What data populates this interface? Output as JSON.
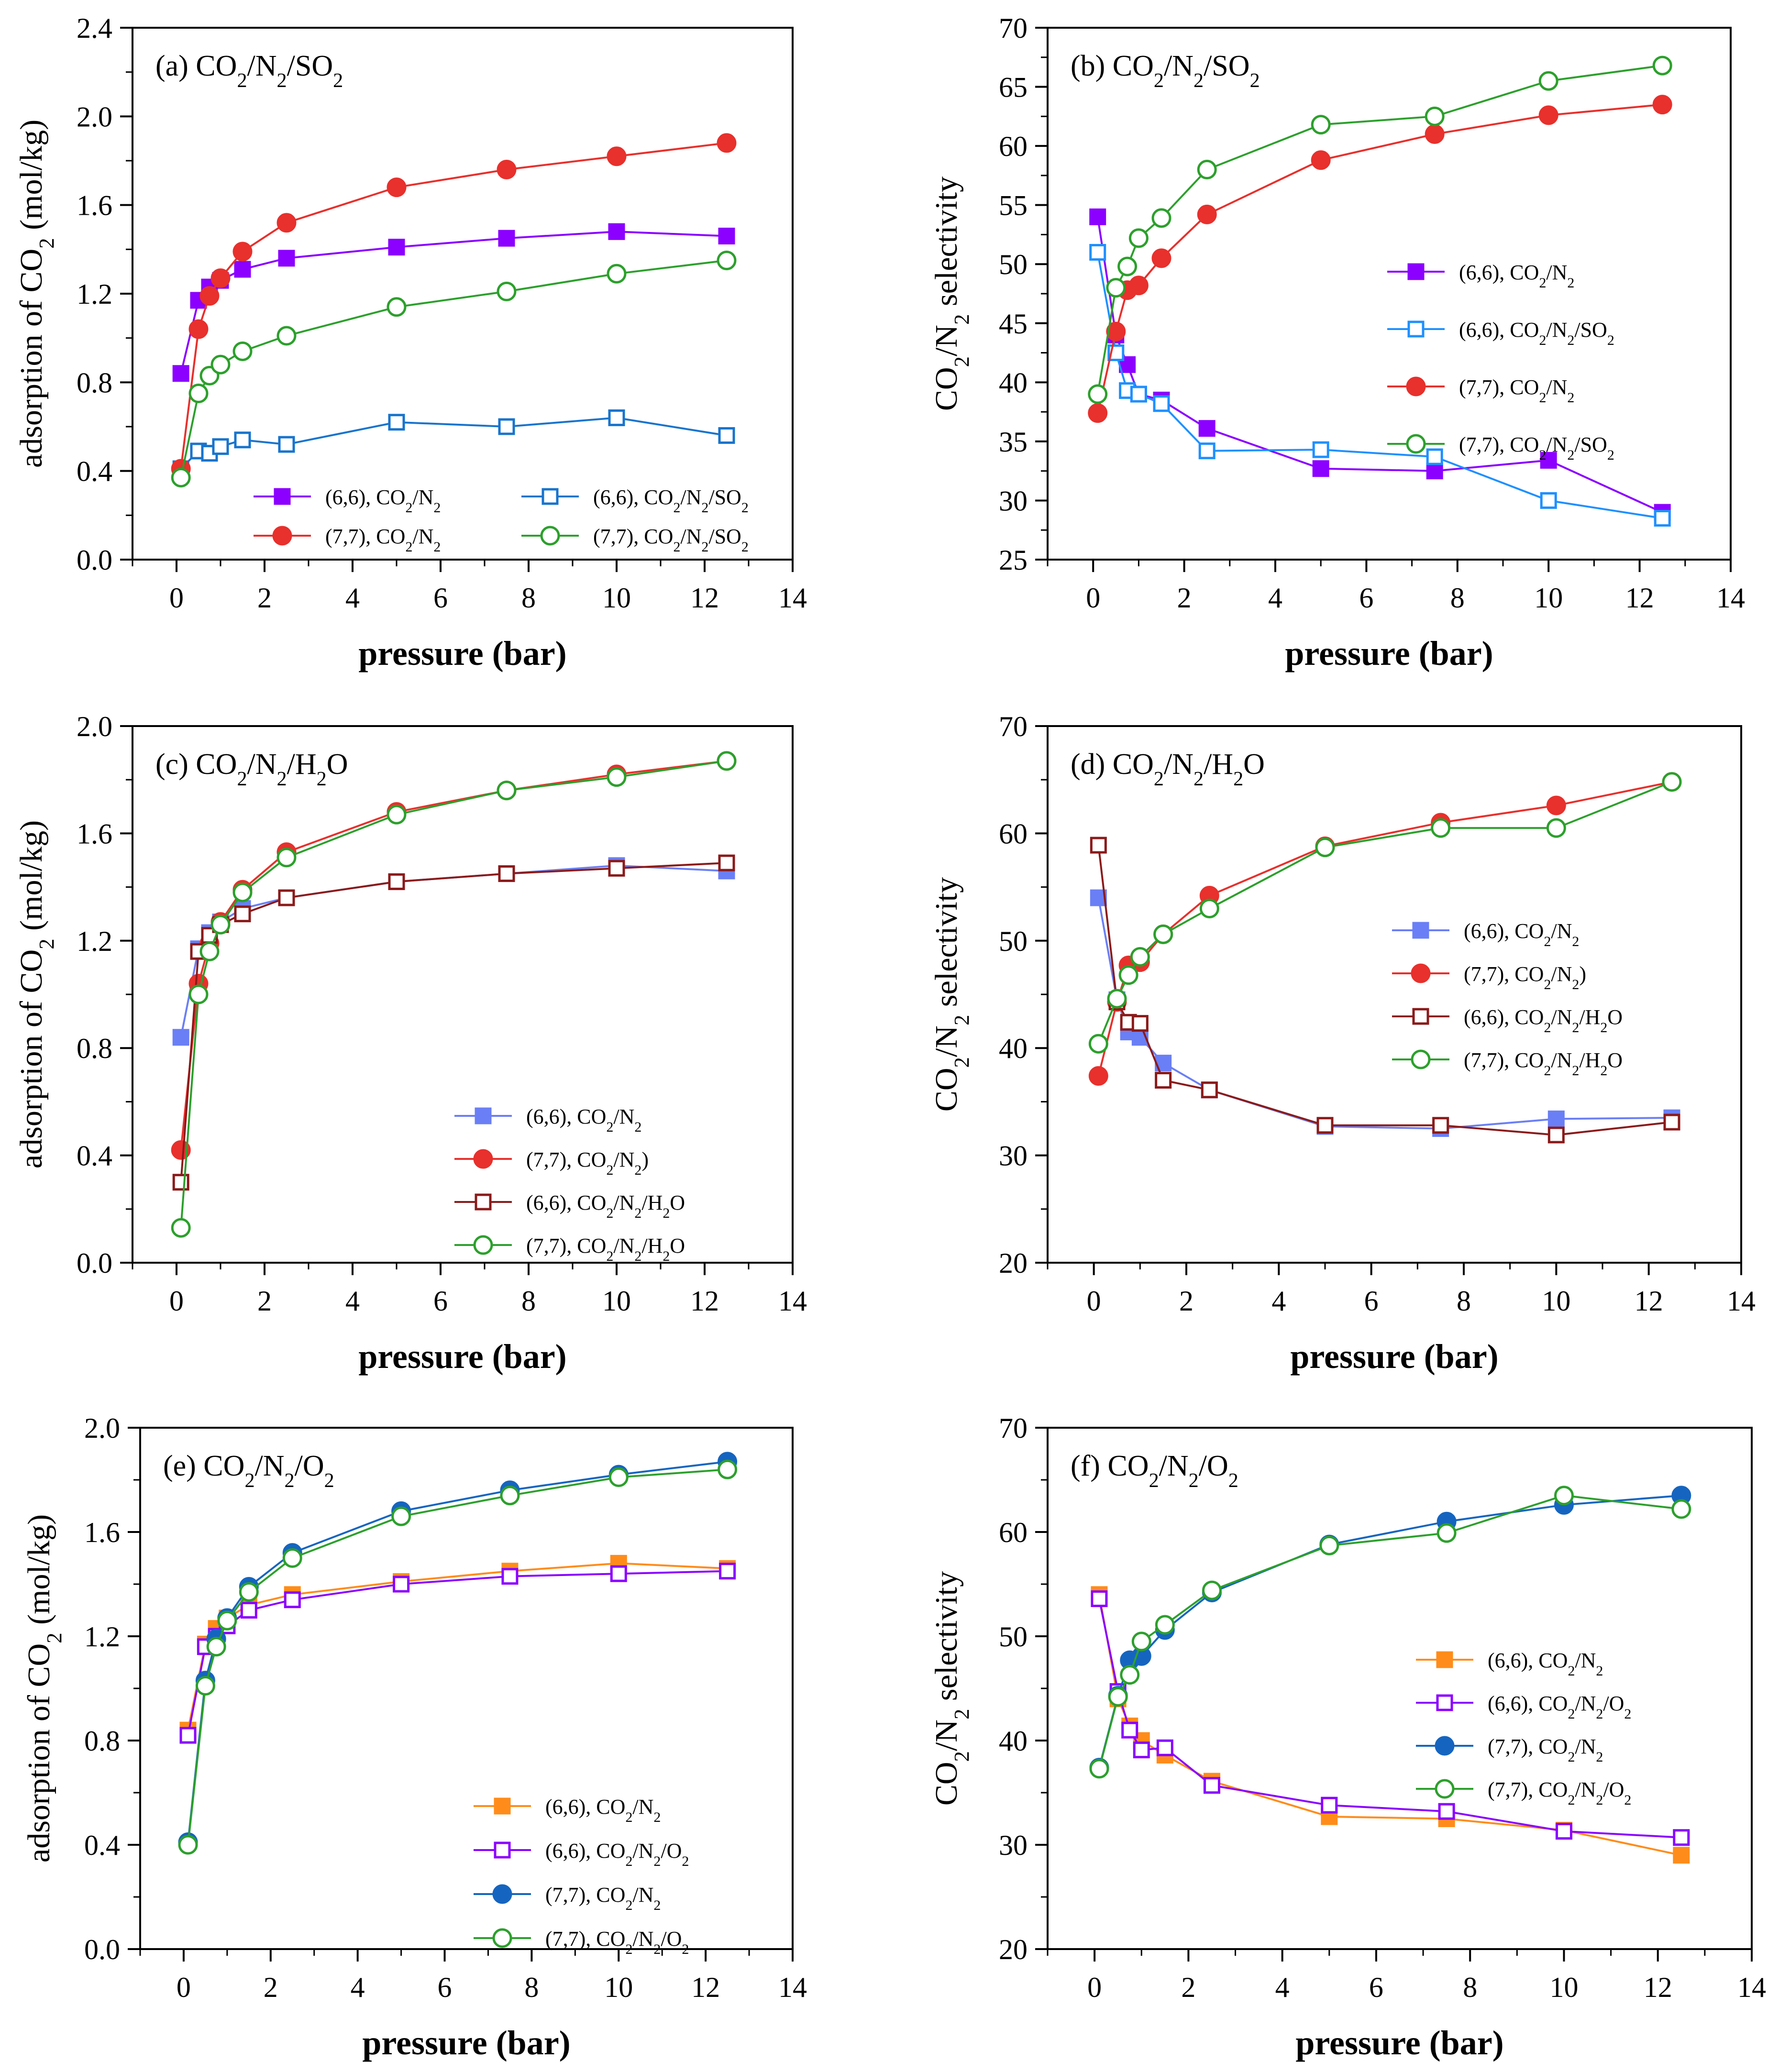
{
  "chart_data": [
    {
      "type": "line",
      "panel_label": "(a)",
      "title": "CO2/N2/SO2",
      "xlabel": "pressure (bar)",
      "ylabel": "adsorption of CO2 (mol/kg)",
      "xlim": [
        -1,
        14
      ],
      "ylim": [
        0.0,
        2.4
      ],
      "xticks": [
        0,
        2,
        4,
        6,
        8,
        10,
        12,
        14
      ],
      "yticks": [
        0.0,
        0.4,
        0.8,
        1.2,
        1.6,
        2.0,
        2.4
      ],
      "ytick_labels": [
        "0.0",
        "0.4",
        "0.8",
        "1.2",
        "1.6",
        "2.0",
        "2.4"
      ],
      "legend_layout": "two-column",
      "legend_position": "bottom-right",
      "series": [
        {
          "name": "(6,6), CO2/N2",
          "color": "#8B00FF",
          "marker": "square",
          "filled": true,
          "x": [
            0.1,
            0.5,
            0.75,
            1.0,
            1.5,
            2.5,
            5,
            7.5,
            10,
            12.5
          ],
          "y": [
            0.84,
            1.17,
            1.23,
            1.26,
            1.31,
            1.36,
            1.41,
            1.45,
            1.48,
            1.46
          ]
        },
        {
          "name": "(6,6), CO2/N2/SO2",
          "color": "#1874CD",
          "marker": "square",
          "filled": false,
          "x": [
            0.1,
            0.5,
            0.75,
            1.0,
            1.5,
            2.5,
            5,
            7.5,
            10,
            12.5
          ],
          "y": [
            0.41,
            0.49,
            0.48,
            0.51,
            0.54,
            0.52,
            0.62,
            0.6,
            0.64,
            0.56
          ]
        },
        {
          "name": "(7,7), CO2/N2",
          "color": "#E8302C",
          "marker": "circle",
          "filled": true,
          "x": [
            0.1,
            0.5,
            0.75,
            1.0,
            1.5,
            2.5,
            5,
            7.5,
            10,
            12.5
          ],
          "y": [
            0.41,
            1.04,
            1.19,
            1.27,
            1.39,
            1.52,
            1.68,
            1.76,
            1.82,
            1.88
          ]
        },
        {
          "name": "(7,7), CO2/N2/SO2",
          "color": "#2CA02C",
          "marker": "circle",
          "filled": false,
          "x": [
            0.1,
            0.5,
            0.75,
            1.0,
            1.5,
            2.5,
            5,
            7.5,
            10,
            12.5
          ],
          "y": [
            0.37,
            0.75,
            0.83,
            0.88,
            0.94,
            1.01,
            1.14,
            1.21,
            1.29,
            1.35
          ]
        }
      ]
    },
    {
      "type": "line",
      "panel_label": "(b)",
      "title": "CO2/N2/SO2",
      "xlabel": "pressure (bar)",
      "ylabel": "CO2/N2 selectivity",
      "xlim": [
        -1,
        14
      ],
      "ylim": [
        25,
        70
      ],
      "xticks": [
        0,
        2,
        4,
        6,
        8,
        10,
        12,
        14
      ],
      "yticks": [
        25,
        30,
        35,
        40,
        45,
        50,
        55,
        60,
        65,
        70
      ],
      "ytick_labels": [
        "25",
        "30",
        "35",
        "40",
        "45",
        "50",
        "55",
        "60",
        "65",
        "70"
      ],
      "legend_layout": "one-column",
      "legend_position": "center-right",
      "series": [
        {
          "name": "(6,6), CO2/N2",
          "color": "#8B00FF",
          "marker": "square",
          "filled": true,
          "x": [
            0.1,
            0.5,
            0.75,
            1.0,
            1.5,
            2.5,
            5,
            7.5,
            10,
            12.5
          ],
          "y": [
            54.0,
            44.0,
            41.5,
            39.0,
            38.5,
            36.1,
            32.7,
            32.5,
            33.4,
            29.0
          ]
        },
        {
          "name": "(6,6), CO2/N2/SO2",
          "color": "#1E90FF",
          "marker": "square",
          "filled": false,
          "x": [
            0.1,
            0.5,
            0.75,
            1.0,
            1.5,
            2.5,
            5,
            7.5,
            10,
            12.5
          ],
          "y": [
            51.0,
            42.5,
            39.3,
            39.0,
            38.2,
            34.2,
            34.3,
            33.7,
            30.0,
            28.5
          ]
        },
        {
          "name": "(7,7), CO2/N2",
          "color": "#E8302C",
          "marker": "circle",
          "filled": true,
          "x": [
            0.1,
            0.5,
            0.75,
            1.0,
            1.5,
            2.5,
            5,
            7.5,
            10,
            12.5
          ],
          "y": [
            37.4,
            44.3,
            47.8,
            48.2,
            50.5,
            54.2,
            58.8,
            61.0,
            62.6,
            63.5
          ]
        },
        {
          "name": "(7,7), CO2/N2/SO2",
          "color": "#2CA02C",
          "marker": "circle",
          "filled": false,
          "x": [
            0.1,
            0.5,
            0.75,
            1.0,
            1.5,
            2.5,
            5,
            7.5,
            10,
            12.5
          ],
          "y": [
            39.0,
            48.0,
            49.8,
            52.2,
            53.9,
            58.0,
            61.8,
            62.5,
            65.5,
            66.8
          ]
        }
      ]
    },
    {
      "type": "line",
      "panel_label": "(c)",
      "title": "CO2/N2/H2O",
      "xlabel": "pressure (bar)",
      "ylabel": "adsorption of CO2 (mol/kg)",
      "xlim": [
        -1,
        14
      ],
      "ylim": [
        0.0,
        2.0
      ],
      "xticks": [
        0,
        2,
        4,
        6,
        8,
        10,
        12,
        14
      ],
      "yticks": [
        0.0,
        0.4,
        0.8,
        1.2,
        1.6,
        2.0
      ],
      "ytick_labels": [
        "0.0",
        "0.4",
        "0.8",
        "1.2",
        "1.6",
        "2.0"
      ],
      "legend_layout": "one-column",
      "legend_position": "bottom-right",
      "series": [
        {
          "name": "(6,6),  CO2/N2",
          "color": "#6A7FF5",
          "marker": "square",
          "filled": true,
          "x": [
            0.1,
            0.5,
            0.75,
            1.0,
            1.5,
            2.5,
            5,
            7.5,
            10,
            12.5
          ],
          "y": [
            0.84,
            1.17,
            1.23,
            1.27,
            1.32,
            1.36,
            1.42,
            1.45,
            1.48,
            1.46
          ]
        },
        {
          "name": "(7,7),  CO2/N2)",
          "color": "#E8302C",
          "marker": "circle",
          "filled": true,
          "x": [
            0.1,
            0.5,
            0.75,
            1.0,
            1.5,
            2.5,
            5,
            7.5,
            10,
            12.5
          ],
          "y": [
            0.42,
            1.04,
            1.19,
            1.27,
            1.39,
            1.53,
            1.68,
            1.76,
            1.82,
            1.87
          ]
        },
        {
          "name": "(6,6),  CO2/N2/H2O",
          "color": "#8B1A1A",
          "marker": "square",
          "filled": false,
          "x": [
            0.1,
            0.5,
            0.75,
            1.0,
            1.5,
            2.5,
            5,
            7.5,
            10,
            12.5
          ],
          "y": [
            0.3,
            1.16,
            1.22,
            1.26,
            1.3,
            1.36,
            1.42,
            1.45,
            1.47,
            1.49
          ]
        },
        {
          "name": "(7,7),  CO2/N2/H2O",
          "color": "#2CA02C",
          "marker": "circle",
          "filled": false,
          "x": [
            0.1,
            0.5,
            0.75,
            1.0,
            1.5,
            2.5,
            5,
            7.5,
            10,
            12.5
          ],
          "y": [
            0.13,
            1.0,
            1.16,
            1.26,
            1.38,
            1.51,
            1.67,
            1.76,
            1.81,
            1.87
          ]
        }
      ]
    },
    {
      "type": "line",
      "panel_label": "(d)",
      "title": "CO2/N2/H2O",
      "xlabel": "pressure (bar)",
      "ylabel": "CO2/N2 selectivity",
      "xlim": [
        -1,
        14
      ],
      "ylim": [
        20,
        70
      ],
      "xticks": [
        0,
        2,
        4,
        6,
        8,
        10,
        12,
        14
      ],
      "yticks": [
        20,
        30,
        40,
        50,
        60,
        70
      ],
      "ytick_labels": [
        "20",
        "30",
        "40",
        "50",
        "60",
        "70"
      ],
      "legend_layout": "one-column",
      "legend_position": "center-right",
      "series": [
        {
          "name": "(6,6),  CO2/N2",
          "color": "#6A7FF5",
          "marker": "square",
          "filled": true,
          "x": [
            0.1,
            0.5,
            0.75,
            1.0,
            1.5,
            2.5,
            5,
            7.5,
            10,
            12.5
          ],
          "y": [
            54.0,
            44.5,
            41.5,
            41.0,
            38.6,
            36.1,
            32.7,
            32.5,
            33.4,
            33.5
          ]
        },
        {
          "name": "(7,7),  CO2/N2)",
          "color": "#E8302C",
          "marker": "circle",
          "filled": true,
          "x": [
            0.1,
            0.5,
            0.75,
            1.0,
            1.5,
            2.5,
            5,
            7.5,
            10,
            12.5
          ],
          "y": [
            37.4,
            44.3,
            47.7,
            48.0,
            50.6,
            54.2,
            58.8,
            61.0,
            62.6,
            64.8
          ]
        },
        {
          "name": "(6,6),  CO2/N2/H2O",
          "color": "#8B1A1A",
          "marker": "square",
          "filled": false,
          "x": [
            0.1,
            0.5,
            0.75,
            1.0,
            1.5,
            2.5,
            5,
            7.5,
            10,
            12.5
          ],
          "y": [
            58.9,
            44.3,
            42.4,
            42.3,
            37.0,
            36.1,
            32.8,
            32.8,
            31.9,
            33.1
          ]
        },
        {
          "name": "(7,7),  CO2/N2/H2O",
          "color": "#2CA02C",
          "marker": "circle",
          "filled": false,
          "x": [
            0.1,
            0.5,
            0.75,
            1.0,
            1.5,
            2.5,
            5,
            7.5,
            10,
            12.5
          ],
          "y": [
            40.4,
            44.6,
            46.8,
            48.5,
            50.6,
            53.0,
            58.7,
            60.5,
            60.5,
            64.8
          ]
        }
      ]
    },
    {
      "type": "line",
      "panel_label": "(e)",
      "title": "CO2/N2/O2",
      "xlabel": "pressure (bar)",
      "ylabel": "adsorption of CO2 (mol/kg)",
      "xlim": [
        -1,
        14
      ],
      "ylim": [
        0.0,
        2.0
      ],
      "xticks": [
        0,
        2,
        4,
        6,
        8,
        10,
        12,
        14
      ],
      "yticks": [
        0.0,
        0.4,
        0.8,
        1.2,
        1.6,
        2.0
      ],
      "ytick_labels": [
        "0.0",
        "0.4",
        "0.8",
        "1.2",
        "1.6",
        "2.0"
      ],
      "legend_layout": "one-column",
      "legend_position": "bottom-right",
      "series": [
        {
          "name": "(6,6), CO2/N2",
          "color": "#FF8C1A",
          "marker": "square",
          "filled": true,
          "x": [
            0.1,
            0.5,
            0.75,
            1.0,
            1.5,
            2.5,
            5,
            7.5,
            10,
            12.5
          ],
          "y": [
            0.84,
            1.17,
            1.23,
            1.27,
            1.32,
            1.36,
            1.41,
            1.45,
            1.48,
            1.46
          ]
        },
        {
          "name": "(6,6), CO2/N2/O2",
          "color": "#8B00FF",
          "marker": "square",
          "filled": false,
          "x": [
            0.1,
            0.5,
            0.75,
            1.0,
            1.5,
            2.5,
            5,
            7.5,
            10,
            12.5
          ],
          "y": [
            0.82,
            1.16,
            1.2,
            1.24,
            1.3,
            1.34,
            1.4,
            1.43,
            1.44,
            1.45
          ]
        },
        {
          "name": "(7,7), CO2/N2",
          "color": "#1565C0",
          "marker": "circle",
          "filled": true,
          "x": [
            0.1,
            0.5,
            0.75,
            1.0,
            1.5,
            2.5,
            5,
            7.5,
            10,
            12.5
          ],
          "y": [
            0.41,
            1.03,
            1.19,
            1.27,
            1.39,
            1.52,
            1.68,
            1.76,
            1.82,
            1.87
          ]
        },
        {
          "name": "(7,7), CO2/N2/O2",
          "color": "#2CA02C",
          "marker": "circle",
          "filled": false,
          "x": [
            0.1,
            0.5,
            0.75,
            1.0,
            1.5,
            2.5,
            5,
            7.5,
            10,
            12.5
          ],
          "y": [
            0.4,
            1.01,
            1.16,
            1.26,
            1.37,
            1.5,
            1.66,
            1.74,
            1.81,
            1.84
          ]
        }
      ]
    },
    {
      "type": "line",
      "panel_label": "(f)",
      "title": "CO2/N2/O2",
      "xlabel": "pressure (bar)",
      "ylabel": "CO2/N2 selectivity",
      "xlim": [
        -1,
        14
      ],
      "ylim": [
        20,
        70
      ],
      "xticks": [
        0,
        2,
        4,
        6,
        8,
        10,
        12,
        14
      ],
      "yticks": [
        20,
        30,
        40,
        50,
        60,
        70
      ],
      "ytick_labels": [
        "20",
        "30",
        "40",
        "50",
        "60",
        "70"
      ],
      "legend_layout": "one-column",
      "legend_position": "center-right",
      "series": [
        {
          "name": "(6,6), CO2/N2",
          "color": "#FF8C1A",
          "marker": "square",
          "filled": true,
          "x": [
            0.1,
            0.5,
            0.75,
            1.0,
            1.5,
            2.5,
            5,
            7.5,
            10,
            12.5
          ],
          "y": [
            54.0,
            44.0,
            41.4,
            40.0,
            38.6,
            36.1,
            32.7,
            32.5,
            31.4,
            29.0
          ]
        },
        {
          "name": "(6,6), CO2/N2/O2",
          "color": "#8B00FF",
          "marker": "square",
          "filled": false,
          "x": [
            0.1,
            0.5,
            0.75,
            1.0,
            1.5,
            2.5,
            5,
            7.5,
            10,
            12.5
          ],
          "y": [
            53.6,
            44.7,
            41.0,
            39.1,
            39.3,
            35.7,
            33.8,
            33.2,
            31.3,
            30.7
          ]
        },
        {
          "name": "(7,7), CO2/N2",
          "color": "#1565C0",
          "marker": "circle",
          "filled": true,
          "x": [
            0.1,
            0.5,
            0.75,
            1.0,
            1.5,
            2.5,
            5,
            7.5,
            10,
            12.5
          ],
          "y": [
            37.4,
            44.3,
            47.7,
            48.1,
            50.6,
            54.2,
            58.8,
            61.0,
            62.6,
            63.5
          ]
        },
        {
          "name": "(7,7), CO2/N2/O2",
          "color": "#2CA02C",
          "marker": "circle",
          "filled": false,
          "x": [
            0.1,
            0.5,
            0.75,
            1.0,
            1.5,
            2.5,
            5,
            7.5,
            10,
            12.5
          ],
          "y": [
            37.3,
            44.2,
            46.3,
            49.5,
            51.1,
            54.4,
            58.7,
            59.9,
            63.5,
            62.2
          ]
        }
      ]
    }
  ]
}
